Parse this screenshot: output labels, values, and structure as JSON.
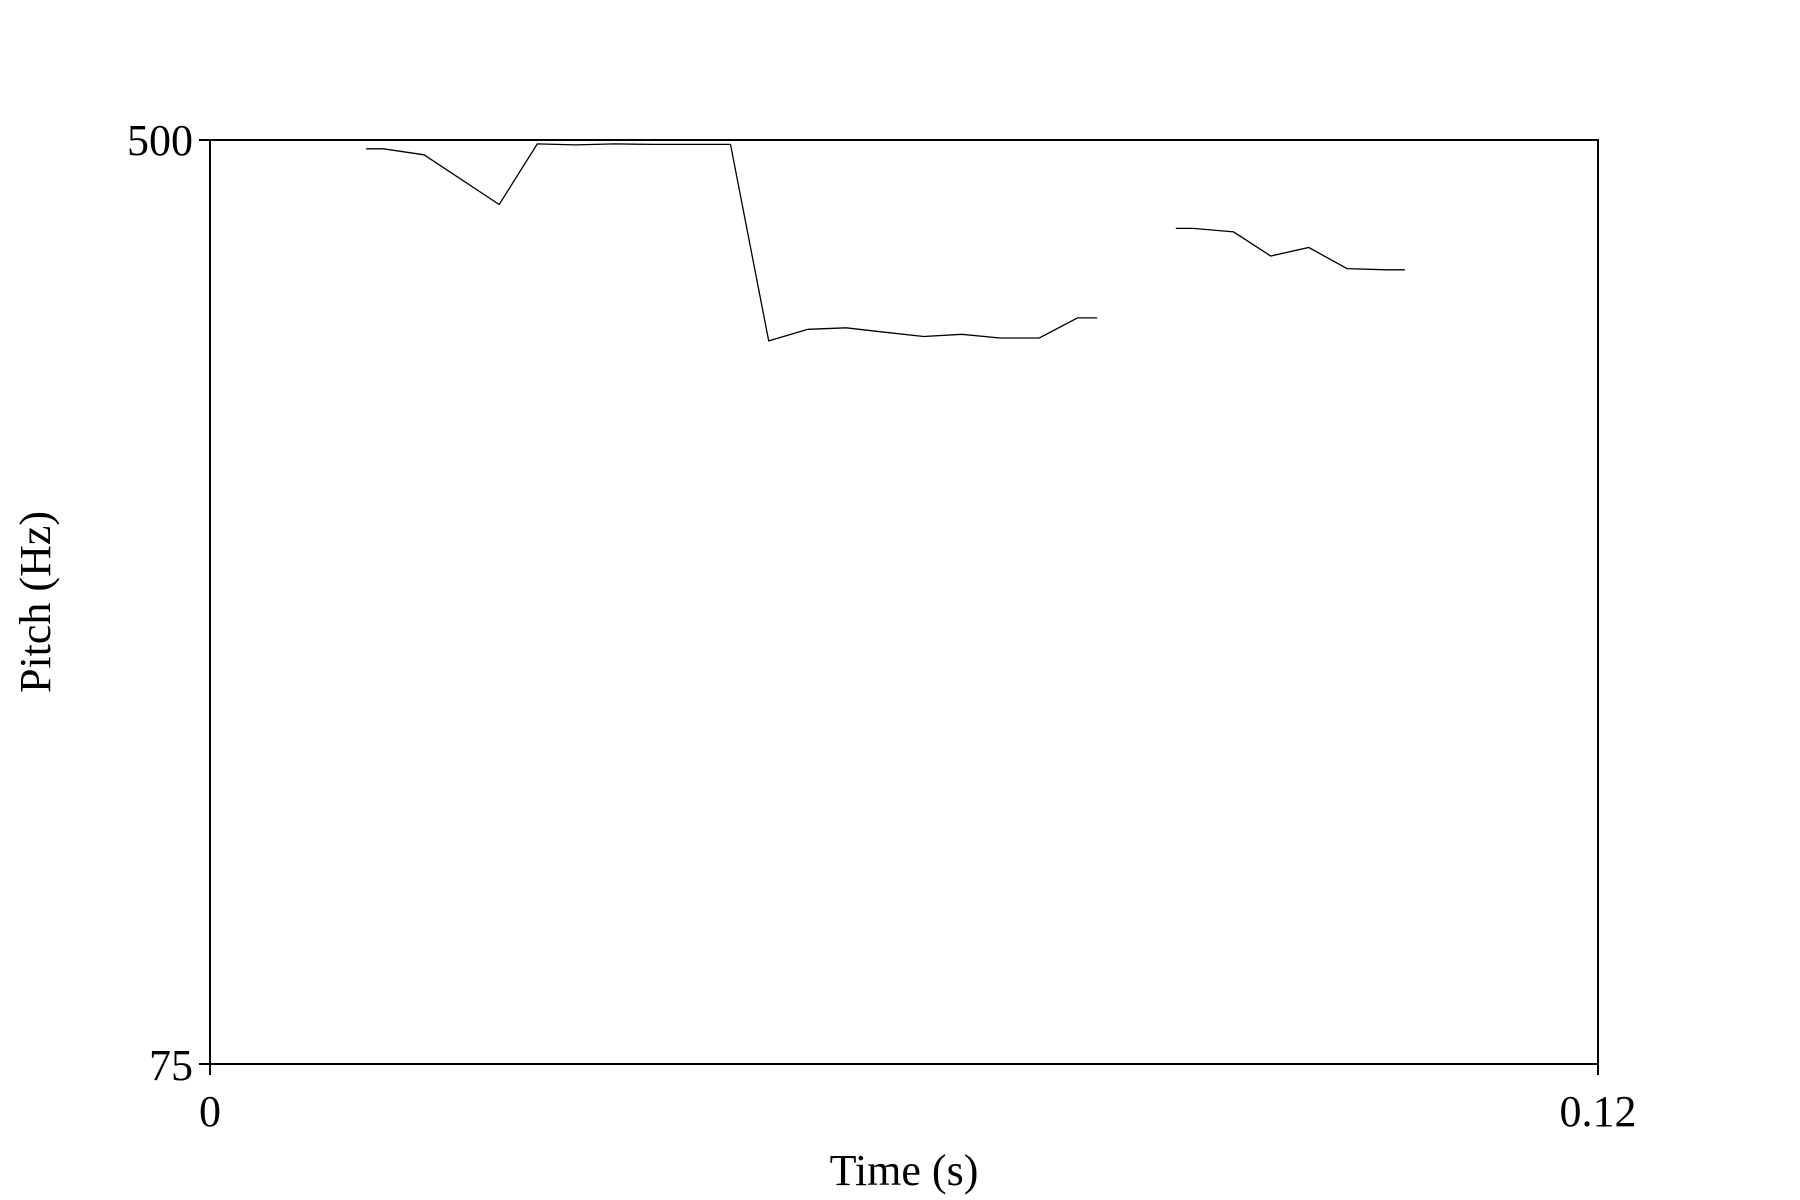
{
  "chart_data": {
    "type": "line",
    "title": "",
    "xlabel": "Time (s)",
    "ylabel": "Pitch (Hz)",
    "xlim": [
      0,
      0.12
    ],
    "ylim": [
      75,
      500
    ],
    "x_tick_labels": [
      "0",
      "0.12"
    ],
    "y_tick_labels": [
      "75",
      "500"
    ],
    "grid": false,
    "legend": "none",
    "line_color": "#000000",
    "series": [
      {
        "x": [
          0.0135,
          0.015,
          0.0185,
          0.025,
          0.0283,
          0.0316,
          0.035,
          0.0383,
          0.045
        ],
        "y": [
          491,
          491,
          485,
          438,
          496,
          495,
          496,
          495.5,
          495.5
        ]
      },
      {
        "x": [
          0.045,
          0.0483,
          0.0517,
          0.055,
          0.0583,
          0.0617,
          0.065,
          0.0683,
          0.0717,
          0.075,
          0.0767
        ],
        "y": [
          495.5,
          331,
          339,
          340,
          337,
          334,
          335.5,
          333,
          333,
          347,
          347
        ]
      },
      {
        "x": [
          0.0835,
          0.085,
          0.0885,
          0.0917,
          0.095,
          0.0983,
          0.1017,
          0.1033
        ],
        "y": [
          417,
          417,
          414,
          394,
          401,
          384,
          383,
          383
        ]
      }
    ]
  }
}
